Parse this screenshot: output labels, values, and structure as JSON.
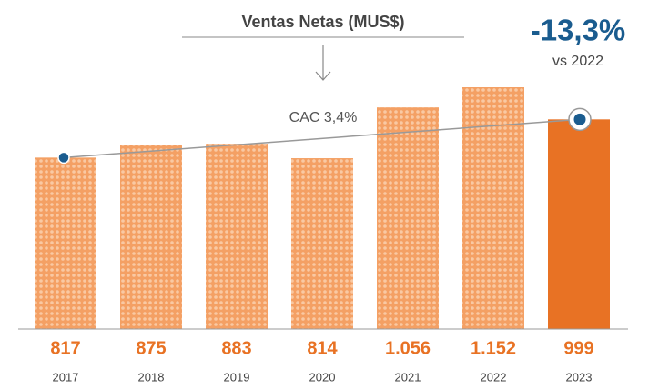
{
  "chart_data": {
    "type": "bar",
    "title": "Ventas Netas (MUS$)",
    "categories": [
      "2017",
      "2018",
      "2019",
      "2020",
      "2021",
      "2022",
      "2023"
    ],
    "values": [
      817,
      875,
      883,
      814,
      1056,
      1152,
      999
    ],
    "value_labels": [
      "817",
      "875",
      "883",
      "814",
      "1.056",
      "1.152",
      "999"
    ],
    "colors": [
      "#f4a064",
      "#f4a064",
      "#f4a064",
      "#f4a064",
      "#f4a064",
      "#f4a064",
      "#e87224"
    ],
    "trend_label": "CAC 3,4%",
    "change": "-13,3%",
    "change_note": "vs 2022"
  }
}
